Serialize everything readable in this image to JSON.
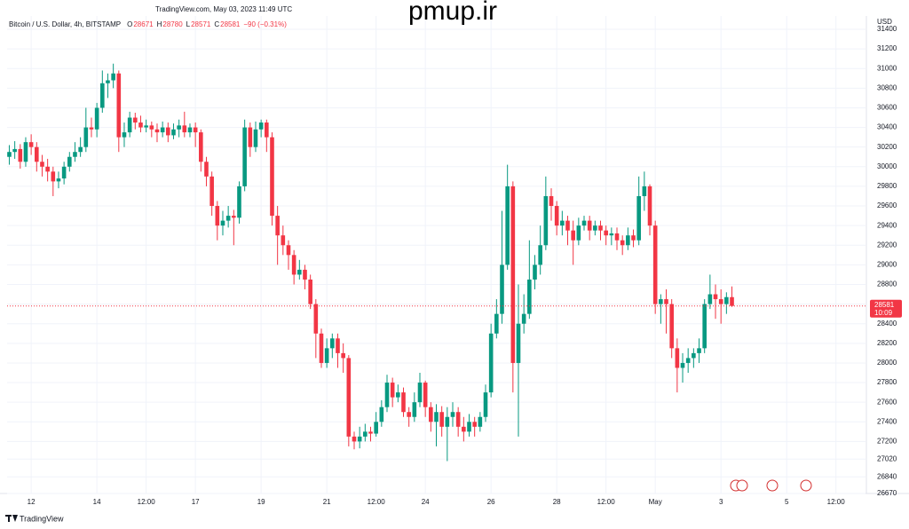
{
  "chart_data": {
    "type": "candlestick",
    "source": "TradingView.com, May 03, 2023 11:49 UTC",
    "watermark": "pmup.ir",
    "symbol": "Bitcoin / U.S. Dollar, 4h, BITSTAMP",
    "ohlc_labels": [
      "O",
      "H",
      "L",
      "C"
    ],
    "change": "−90 (−0.31%)",
    "currency": "USD",
    "countdown": "10:09",
    "brand": "TradingView",
    "up_color": "#089981",
    "down_color": "#f23645",
    "grid": true,
    "open": [
      30100,
      30150,
      30180,
      30050,
      30250,
      30200,
      30050,
      30000,
      29950,
      29850,
      29880,
      30000,
      30100,
      30150,
      30200,
      30400,
      30380,
      30600,
      30850,
      30880,
      30950,
      30300,
      30350,
      30500,
      30450,
      30400,
      30420,
      30380,
      30350,
      30400,
      30320,
      30380,
      30420,
      30350,
      30400,
      30350,
      30050,
      29900,
      29600,
      29400,
      29450,
      29500,
      29480,
      29800,
      30400,
      30200,
      30380,
      30450,
      30300,
      29500,
      29300,
      29200,
      29100,
      28900,
      28950,
      28850,
      28600,
      28300,
      28000,
      28150,
      28250,
      28100,
      28050,
      27250,
      27200,
      27250,
      27300,
      27280,
      27400,
      27550,
      27800,
      27650,
      27700,
      27500,
      27450,
      27600,
      27800,
      27550,
      27400,
      27500,
      27350,
      27450,
      27500,
      27350,
      27300,
      27400,
      27350,
      27450,
      27700,
      28300,
      28500,
      29000,
      29800,
      28000,
      28400,
      28500,
      28850,
      29000,
      29200,
      29700,
      29600,
      29400,
      29450,
      29350,
      29250,
      29400,
      29450,
      29350,
      29400,
      29350,
      29300,
      29320,
      29250,
      29200,
      29300,
      29250,
      29700,
      29800,
      29400,
      28600,
      28650,
      28600,
      28150,
      27950,
      28000,
      28050,
      28100,
      28150,
      28600,
      28700,
      28650,
      28600,
      28671
    ],
    "high": [
      30220,
      30260,
      30230,
      30300,
      30330,
      30250,
      30120,
      30080,
      30000,
      29950,
      30050,
      30150,
      30250,
      30300,
      30600,
      30500,
      30650,
      30980,
      30950,
      31050,
      30980,
      30450,
      30560,
      30550,
      30520,
      30480,
      30460,
      30440,
      30460,
      30450,
      30440,
      30480,
      30560,
      30440,
      30450,
      30380,
      30100,
      29950,
      29650,
      29550,
      29600,
      29560,
      29850,
      30480,
      30450,
      30460,
      30480,
      30480,
      30350,
      29600,
      29400,
      29250,
      29150,
      29050,
      29000,
      28900,
      28650,
      28350,
      28250,
      28300,
      28300,
      28200,
      28080,
      27300,
      27350,
      27380,
      27350,
      27500,
      27620,
      27880,
      27850,
      27780,
      27750,
      27550,
      27700,
      27900,
      27820,
      27600,
      27580,
      27560,
      27550,
      27600,
      27550,
      27450,
      27480,
      27450,
      27500,
      27780,
      28400,
      28650,
      29550,
      30020,
      29850,
      28800,
      28700,
      29250,
      29100,
      29400,
      29900,
      29780,
      29650,
      29550,
      29500,
      29450,
      29480,
      29500,
      29500,
      29450,
      29450,
      29400,
      29380,
      29380,
      29300,
      29380,
      29360,
      29900,
      29950,
      29820,
      29450,
      28700,
      28750,
      28650,
      28250,
      28100,
      28150,
      28150,
      28250,
      28650,
      28900,
      28800,
      28750,
      28720,
      28780
    ],
    "low": [
      30020,
      30080,
      29980,
      30000,
      30120,
      29950,
      29900,
      29850,
      29700,
      29780,
      29820,
      29950,
      30050,
      30100,
      30150,
      30300,
      30300,
      30550,
      30700,
      30800,
      30150,
      30200,
      30300,
      30380,
      30350,
      30350,
      30300,
      30250,
      30300,
      30250,
      30280,
      30300,
      30300,
      30300,
      30200,
      29950,
      29800,
      29500,
      29250,
      29300,
      29380,
      29200,
      29420,
      29750,
      30100,
      30150,
      30300,
      30150,
      29400,
      29000,
      29100,
      28950,
      28800,
      28850,
      28750,
      28550,
      28050,
      27950,
      27950,
      28050,
      27950,
      27900,
      27150,
      27120,
      27130,
      27200,
      27200,
      27250,
      27350,
      27500,
      27550,
      27600,
      27450,
      27350,
      27400,
      27550,
      27450,
      27300,
      27150,
      27250,
      27000,
      27350,
      27250,
      27200,
      27250,
      27250,
      27300,
      27400,
      27650,
      28250,
      28400,
      28950,
      27700,
      27250,
      28300,
      28450,
      28750,
      28900,
      29150,
      29450,
      29300,
      29300,
      29200,
      29000,
      29200,
      29350,
      29250,
      29300,
      29250,
      29200,
      29200,
      29150,
      29100,
      29150,
      29180,
      29200,
      29550,
      29300,
      28500,
      28400,
      28300,
      28050,
      27700,
      27800,
      27900,
      27950,
      28000,
      28100,
      28550,
      28450,
      28400,
      28500,
      28571
    ],
    "close": [
      30150,
      30180,
      30050,
      30250,
      30200,
      30050,
      30000,
      29950,
      29850,
      29880,
      30000,
      30100,
      30150,
      30200,
      30400,
      30380,
      30600,
      30850,
      30880,
      30950,
      30300,
      30350,
      30500,
      30450,
      30400,
      30420,
      30380,
      30350,
      30400,
      30320,
      30380,
      30420,
      30350,
      30400,
      30350,
      30050,
      29900,
      29600,
      29400,
      29450,
      29500,
      29480,
      29800,
      30400,
      30200,
      30380,
      30450,
      30300,
      29500,
      29300,
      29200,
      29100,
      28900,
      28950,
      28850,
      28600,
      28300,
      28000,
      28150,
      28250,
      28100,
      28050,
      27250,
      27200,
      27250,
      27300,
      27280,
      27400,
      27550,
      27800,
      27650,
      27700,
      27500,
      27450,
      27600,
      27800,
      27550,
      27400,
      27500,
      27350,
      27450,
      27500,
      27350,
      27300,
      27400,
      27350,
      27450,
      27700,
      28300,
      28500,
      29000,
      29800,
      28000,
      28400,
      28500,
      28850,
      29000,
      29200,
      29700,
      29600,
      29400,
      29450,
      29350,
      29250,
      29400,
      29450,
      29350,
      29400,
      29350,
      29300,
      29320,
      29250,
      29200,
      29300,
      29250,
      29700,
      29800,
      29400,
      28600,
      28650,
      28600,
      28150,
      27950,
      28000,
      28050,
      28100,
      28150,
      28600,
      28700,
      28650,
      28600,
      28671,
      28581
    ],
    "xlim": [
      -0.4,
      156.4
    ],
    "xticks": [
      {
        "value": 4,
        "label": "12"
      },
      {
        "value": 16,
        "label": "14"
      },
      {
        "value": 25,
        "label": "12:00"
      },
      {
        "value": 34,
        "label": "17"
      },
      {
        "value": 46,
        "label": "19"
      },
      {
        "value": 58,
        "label": "21"
      },
      {
        "value": 67,
        "label": "12:00"
      },
      {
        "value": 76,
        "label": "24"
      },
      {
        "value": 88,
        "label": "26"
      },
      {
        "value": 100,
        "label": "28"
      },
      {
        "value": 109,
        "label": "12:00"
      },
      {
        "value": 118,
        "label": "May"
      },
      {
        "value": 130,
        "label": "3"
      },
      {
        "value": 142,
        "label": "5"
      },
      {
        "value": 151,
        "label": "12:00"
      }
    ],
    "ylim": [
      26670,
      31400
    ],
    "yticks": [
      26670,
      26840,
      27020,
      27200,
      27400,
      27600,
      27800,
      28000,
      28200,
      28400,
      28600,
      28800,
      29000,
      29200,
      29400,
      29600,
      29800,
      30000,
      30200,
      30400,
      30600,
      30800,
      31000,
      31200,
      31400
    ]
  }
}
